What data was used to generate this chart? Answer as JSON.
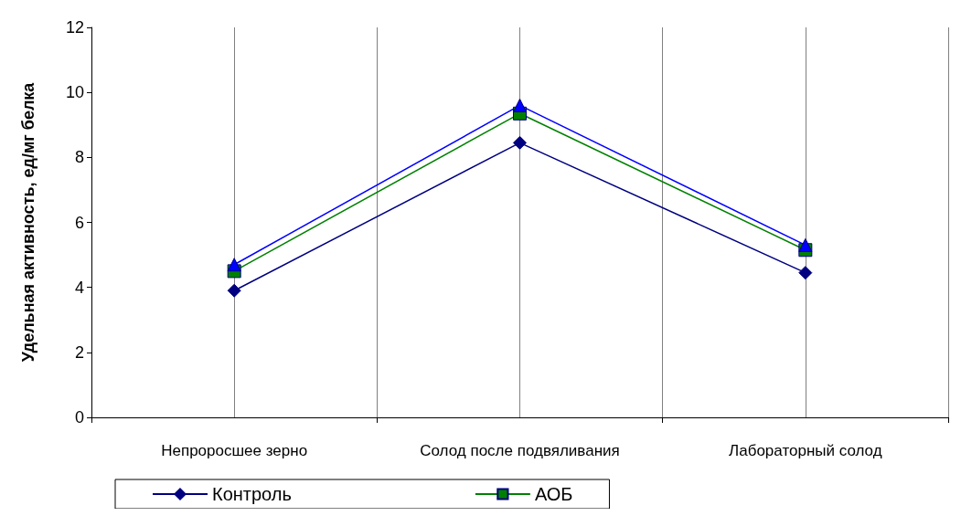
{
  "chart_data": {
    "type": "line",
    "ylabel": "Удельная активность, ед/мг белка",
    "categories": [
      "Непроросшее зерно",
      "Солод после подвяливания",
      "Лабораторный солод"
    ],
    "series": [
      {
        "name": "Контроль",
        "color": "#000080",
        "marker": "diamond",
        "values": [
          3.9,
          8.45,
          4.45
        ]
      },
      {
        "name": "АОБ",
        "color": "#008000",
        "marker": "square",
        "values": [
          4.5,
          9.35,
          5.15
        ]
      },
      {
        "color": "#0000ff",
        "marker": "triangle",
        "values": [
          4.7,
          9.6,
          5.3
        ]
      }
    ],
    "ylim": [
      0,
      12
    ],
    "yticks": [
      0,
      2,
      4,
      6,
      8,
      10,
      12
    ],
    "grid": "x",
    "legend": "bottom"
  }
}
